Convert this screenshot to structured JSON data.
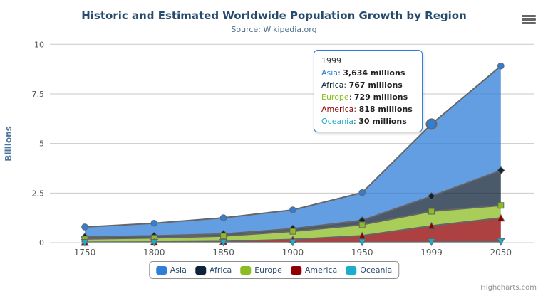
{
  "chart_data": {
    "type": "area",
    "stacking": "normal",
    "title": "Historic and Estimated Worldwide Population Growth by Region",
    "subtitle": "Source: Wikipedia.org",
    "categories": [
      "1750",
      "1800",
      "1850",
      "1900",
      "1950",
      "1999",
      "2050"
    ],
    "unit": "millions",
    "series": [
      {
        "name": "Asia",
        "color": "#2f7ed8",
        "marker": "circle",
        "values": [
          502,
          635,
          809,
          947,
          1402,
          3634,
          5268
        ]
      },
      {
        "name": "Africa",
        "color": "#0d233a",
        "marker": "diamond",
        "values": [
          106,
          107,
          111,
          133,
          221,
          767,
          1766
        ]
      },
      {
        "name": "Europe",
        "color": "#8bbc21",
        "marker": "square",
        "values": [
          163,
          203,
          276,
          408,
          547,
          729,
          628
        ]
      },
      {
        "name": "America",
        "color": "#910000",
        "marker": "triangle",
        "values": [
          18,
          31,
          54,
          156,
          339,
          818,
          1201
        ]
      },
      {
        "name": "Oceania",
        "color": "#1aadce",
        "marker": "triangle-down",
        "values": [
          2,
          2,
          2,
          6,
          13,
          30,
          46
        ]
      }
    ],
    "xlabel": "",
    "ylabel": "Billions",
    "yticks": [
      0,
      2.5,
      5,
      7.5,
      10
    ],
    "ylim": [
      0,
      10
    ],
    "grid": true,
    "legend_position": "bottom",
    "line_color": "#666666",
    "marker_line_color": "#666666",
    "fill_opacity": 0.75,
    "grid_color": "#c9c9c9",
    "axis_line_color": "#c0d0e0",
    "axis_label_color": "#555555"
  },
  "tooltip": {
    "category": "1999",
    "rows": [
      {
        "name": "Asia",
        "color": "#2f7ed8",
        "value": "3,634 millions"
      },
      {
        "name": "Africa",
        "color": "#0d233a",
        "value": "767 millions"
      },
      {
        "name": "Europe",
        "color": "#8bbc21",
        "value": "729 millions"
      },
      {
        "name": "America",
        "color": "#910000",
        "value": "818 millions"
      },
      {
        "name": "Oceania",
        "color": "#1aadce",
        "value": "30 millions"
      }
    ],
    "border_color": "#2f7ed8",
    "hover_point": {
      "series": "Asia",
      "category": "1999"
    }
  },
  "legend": {
    "items": [
      "Asia",
      "Africa",
      "Europe",
      "America",
      "Oceania"
    ]
  },
  "export_menu": {
    "icon": "hamburger-icon"
  },
  "credits": {
    "label": "Highcharts.com"
  }
}
